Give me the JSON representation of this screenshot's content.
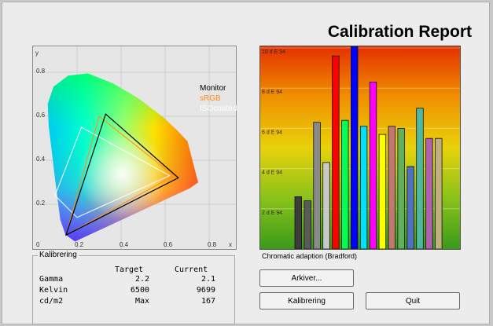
{
  "header": {
    "title": "Calibration Report"
  },
  "cie_chart": {
    "axis_x_label": "x",
    "axis_y_label": "y",
    "x_ticks": [
      "0.2",
      "0.4",
      "0.6",
      "0.8"
    ],
    "y_ticks": [
      "0.2",
      "0.4",
      "0.6",
      "0.8"
    ],
    "origin_label": "0",
    "legend": [
      {
        "label": "Monitor",
        "color": "#000000"
      },
      {
        "label": "sRGB",
        "color": "#ff8c1a"
      },
      {
        "label": "ISOcoated",
        "color": "#ffffff"
      }
    ],
    "gamuts": {
      "monitor": [
        [
          0.33,
          0.61
        ],
        [
          0.66,
          0.32
        ],
        [
          0.15,
          0.06
        ]
      ],
      "srgb": [
        [
          0.3,
          0.6
        ],
        [
          0.64,
          0.33
        ],
        [
          0.15,
          0.06
        ]
      ],
      "isocoated": [
        [
          0.22,
          0.55
        ],
        [
          0.62,
          0.33
        ],
        [
          0.2,
          0.14
        ],
        [
          0.1,
          0.24
        ]
      ]
    }
  },
  "chart_data": {
    "type": "bar",
    "ylabel_unit": "d E 94",
    "y_ticks": [
      {
        "label": "2 d E 94",
        "value": 2
      },
      {
        "label": "4 d E 94",
        "value": 4
      },
      {
        "label": "6 d E 94",
        "value": 6
      },
      {
        "label": "8 d E 94",
        "value": 8
      },
      {
        "label": "10 d E 94",
        "value": 10
      }
    ],
    "ylim": [
      0,
      10
    ],
    "series": [
      {
        "values": [
          2.6,
          2.4,
          6.3,
          4.3,
          9.6,
          6.4,
          10.1,
          6.1,
          8.3,
          5.7,
          6.1,
          6.0,
          4.1,
          7.0,
          5.5,
          5.5
        ]
      }
    ],
    "colors": [
      "#3c3c3c",
      "#5a5a5a",
      "#8a8a8a",
      "#c8c8c8",
      "#ff0000",
      "#00ff55",
      "#0000ff",
      "#00e0ff",
      "#ff00ff",
      "#ffff00",
      "#c07870",
      "#60b060",
      "#5070c0",
      "#50b8a0",
      "#b060b0",
      "#c0b080"
    ],
    "caption": "Chromatic adaption (Bradford)"
  },
  "calibration": {
    "group_title": "Kalibrering",
    "columns": [
      "Target",
      "Current"
    ],
    "rows": [
      {
        "label": "Gamma",
        "target": "2.2",
        "current": "2.1"
      },
      {
        "label": "Kelvin",
        "target": "6500",
        "current": "9699"
      },
      {
        "label": "cd/m2",
        "target": "Max",
        "current": "167"
      }
    ]
  },
  "buttons": {
    "archive": "Arkiver...",
    "calibrate": "Kalibrering",
    "quit": "Quit"
  }
}
